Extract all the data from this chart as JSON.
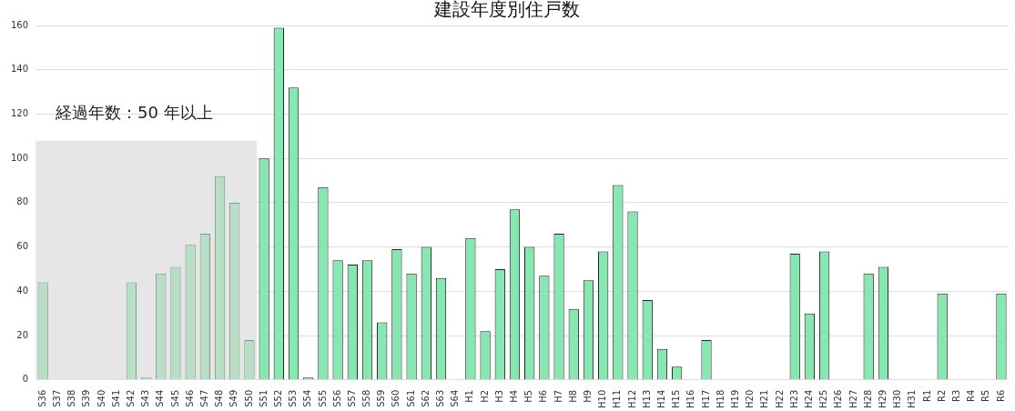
{
  "chart_data": {
    "type": "bar",
    "title": "建設年度別住戸数",
    "categories": [
      "S36",
      "S37",
      "S38",
      "S39",
      "S40",
      "S41",
      "S42",
      "S43",
      "S44",
      "S45",
      "S46",
      "S47",
      "S48",
      "S49",
      "S50",
      "S51",
      "S52",
      "S53",
      "S54",
      "S55",
      "S56",
      "S57",
      "S58",
      "S59",
      "S60",
      "S61",
      "S62",
      "S63",
      "S64",
      "H1",
      "H2",
      "H3",
      "H4",
      "H5",
      "H6",
      "H7",
      "H8",
      "H9",
      "H10",
      "H11",
      "H12",
      "H13",
      "H14",
      "H15",
      "H16",
      "H17",
      "H18",
      "H19",
      "H20",
      "H21",
      "H22",
      "H23",
      "H24",
      "H25",
      "H26",
      "H27",
      "H28",
      "H29",
      "H30",
      "H31",
      "R1",
      "R2",
      "R3",
      "R4",
      "R5",
      "R6"
    ],
    "values": [
      44,
      0,
      0,
      0,
      0,
      0,
      44,
      1,
      48,
      51,
      61,
      66,
      92,
      80,
      18,
      100,
      159,
      132,
      1,
      87,
      54,
      52,
      54,
      26,
      59,
      48,
      60,
      46,
      0,
      64,
      22,
      50,
      77,
      60,
      47,
      66,
      32,
      45,
      58,
      88,
      76,
      36,
      14,
      6,
      0,
      18,
      0,
      0,
      0,
      0,
      0,
      57,
      30,
      58,
      0,
      0,
      48,
      51,
      0,
      0,
      0,
      39,
      0,
      0,
      0,
      39
    ],
    "colors": [
      "#b8dec6",
      "#b8dec6",
      "#b8dec6",
      "#b8dec6",
      "#b8dec6",
      "#b8dec6",
      "#b8dec6",
      "#b8dec6",
      "#b8dec6",
      "#b8dec6",
      "#b8dec6",
      "#b8dec6",
      "#b8dec6",
      "#b8dec6",
      "#b8dec6",
      "#86e8b0",
      "#86e8b0",
      "#86e8b0",
      "#86e8b0",
      "#86e8b0",
      "#86e8b0",
      "#86e8b0",
      "#86e8b0",
      "#86e8b0",
      "#86e8b0",
      "#86e8b0",
      "#86e8b0",
      "#86e8b0",
      "#86e8b0",
      "#86e8b0",
      "#86e8b0",
      "#86e8b0",
      "#86e8b0",
      "#86e8b0",
      "#86e8b0",
      "#86e8b0",
      "#86e8b0",
      "#86e8b0",
      "#86e8b0",
      "#86e8b0",
      "#86e8b0",
      "#86e8b0",
      "#86e8b0",
      "#86e8b0",
      "#86e8b0",
      "#86e8b0",
      "#86e8b0",
      "#86e8b0",
      "#86e8b0",
      "#86e8b0",
      "#86e8b0",
      "#86e8b0",
      "#86e8b0",
      "#86e8b0",
      "#86e8b0",
      "#86e8b0",
      "#86e8b0",
      "#86e8b0",
      "#86e8b0",
      "#86e8b0",
      "#86e8b0",
      "#86e8b0",
      "#86e8b0",
      "#86e8b0",
      "#86e8b0",
      "#86e8b0"
    ],
    "ylim": [
      0,
      160
    ],
    "yticks": [
      0,
      20,
      40,
      60,
      80,
      100,
      120,
      140,
      160
    ],
    "grid": "y",
    "legend": false,
    "bands": [
      {
        "axis": "x",
        "from": "S36",
        "to": "S50",
        "label": "経過年数：50 年以上",
        "color": "#e6e6e6"
      }
    ]
  }
}
